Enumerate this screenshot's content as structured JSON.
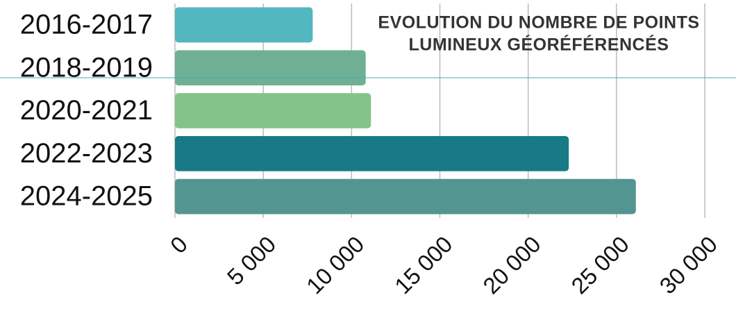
{
  "chart_data": {
    "type": "barh",
    "title": [
      "EVOLUTION DU NOMBRE DE POINTS",
      "LUMINEUX GÉORÉFÉRENCÉS"
    ],
    "categories": [
      "2016-2017",
      "2018-2019",
      "2020-2021",
      "2022-2023",
      "2024-2025"
    ],
    "values": [
      7800,
      10800,
      11100,
      22300,
      26100
    ],
    "colors": [
      "#52b7bf",
      "#6fb094",
      "#84c48a",
      "#177a86",
      "#539590"
    ],
    "xlim": [
      0,
      30000
    ],
    "xticks": [
      0,
      {
        "value": 5000,
        "label": "5 000"
      },
      {
        "value": 10000,
        "label": "10 000"
      },
      {
        "value": 15000,
        "label": "15 000"
      },
      {
        "value": 20000,
        "label": "20 000"
      },
      {
        "value": 25000,
        "label": "25 000"
      },
      {
        "value": 30000,
        "label": "30 000"
      }
    ],
    "grid": true
  }
}
